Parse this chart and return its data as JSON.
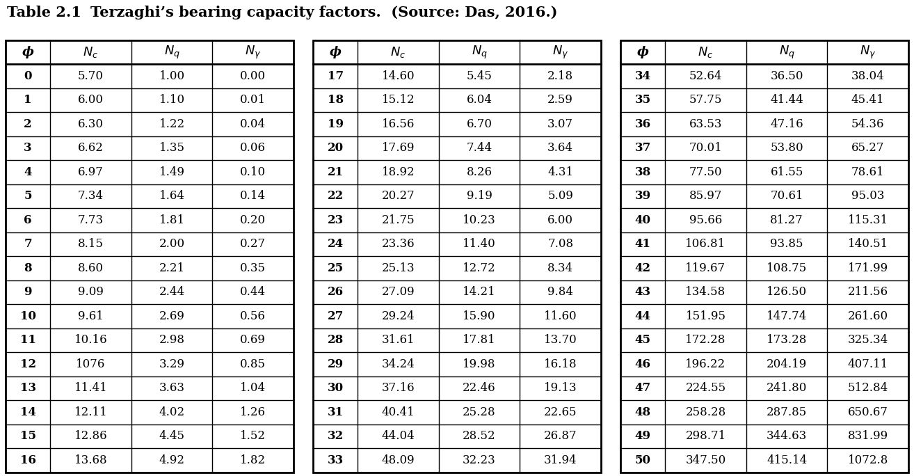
{
  "title_part1": "Table 2.1",
  "title_part2": "Terzaghi’s bearing capacity factors.  (Source: Das, 2016.)",
  "table1": [
    [
      "0",
      "5.70",
      "1.00",
      "0.00"
    ],
    [
      "1",
      "6.00",
      "1.10",
      "0.01"
    ],
    [
      "2",
      "6.30",
      "1.22",
      "0.04"
    ],
    [
      "3",
      "6.62",
      "1.35",
      "0.06"
    ],
    [
      "4",
      "6.97",
      "1.49",
      "0.10"
    ],
    [
      "5",
      "7.34",
      "1.64",
      "0.14"
    ],
    [
      "6",
      "7.73",
      "1.81",
      "0.20"
    ],
    [
      "7",
      "8.15",
      "2.00",
      "0.27"
    ],
    [
      "8",
      "8.60",
      "2.21",
      "0.35"
    ],
    [
      "9",
      "9.09",
      "2.44",
      "0.44"
    ],
    [
      "10",
      "9.61",
      "2.69",
      "0.56"
    ],
    [
      "11",
      "10.16",
      "2.98",
      "0.69"
    ],
    [
      "12",
      "1076",
      "3.29",
      "0.85"
    ],
    [
      "13",
      "11.41",
      "3.63",
      "1.04"
    ],
    [
      "14",
      "12.11",
      "4.02",
      "1.26"
    ],
    [
      "15",
      "12.86",
      "4.45",
      "1.52"
    ],
    [
      "16",
      "13.68",
      "4.92",
      "1.82"
    ]
  ],
  "table2": [
    [
      "17",
      "14.60",
      "5.45",
      "2.18"
    ],
    [
      "18",
      "15.12",
      "6.04",
      "2.59"
    ],
    [
      "19",
      "16.56",
      "6.70",
      "3.07"
    ],
    [
      "20",
      "17.69",
      "7.44",
      "3.64"
    ],
    [
      "21",
      "18.92",
      "8.26",
      "4.31"
    ],
    [
      "22",
      "20.27",
      "9.19",
      "5.09"
    ],
    [
      "23",
      "21.75",
      "10.23",
      "6.00"
    ],
    [
      "24",
      "23.36",
      "11.40",
      "7.08"
    ],
    [
      "25",
      "25.13",
      "12.72",
      "8.34"
    ],
    [
      "26",
      "27.09",
      "14.21",
      "9.84"
    ],
    [
      "27",
      "29.24",
      "15.90",
      "11.60"
    ],
    [
      "28",
      "31.61",
      "17.81",
      "13.70"
    ],
    [
      "29",
      "34.24",
      "19.98",
      "16.18"
    ],
    [
      "30",
      "37.16",
      "22.46",
      "19.13"
    ],
    [
      "31",
      "40.41",
      "25.28",
      "22.65"
    ],
    [
      "32",
      "44.04",
      "28.52",
      "26.87"
    ],
    [
      "33",
      "48.09",
      "32.23",
      "31.94"
    ]
  ],
  "table3": [
    [
      "34",
      "52.64",
      "36.50",
      "38.04"
    ],
    [
      "35",
      "57.75",
      "41.44",
      "45.41"
    ],
    [
      "36",
      "63.53",
      "47.16",
      "54.36"
    ],
    [
      "37",
      "70.01",
      "53.80",
      "65.27"
    ],
    [
      "38",
      "77.50",
      "61.55",
      "78.61"
    ],
    [
      "39",
      "85.97",
      "70.61",
      "95.03"
    ],
    [
      "40",
      "95.66",
      "81.27",
      "115.31"
    ],
    [
      "41",
      "106.81",
      "93.85",
      "140.51"
    ],
    [
      "42",
      "119.67",
      "108.75",
      "171.99"
    ],
    [
      "43",
      "134.58",
      "126.50",
      "211.56"
    ],
    [
      "44",
      "151.95",
      "147.74",
      "261.60"
    ],
    [
      "45",
      "172.28",
      "173.28",
      "325.34"
    ],
    [
      "46",
      "196.22",
      "204.19",
      "407.11"
    ],
    [
      "47",
      "224.55",
      "241.80",
      "512.84"
    ],
    [
      "48",
      "258.28",
      "287.85",
      "650.67"
    ],
    [
      "49",
      "298.71",
      "344.63",
      "831.99"
    ],
    [
      "50",
      "347.50",
      "415.14",
      "1072.8"
    ]
  ],
  "fig_width": 13.14,
  "fig_height": 6.84,
  "dpi": 100
}
